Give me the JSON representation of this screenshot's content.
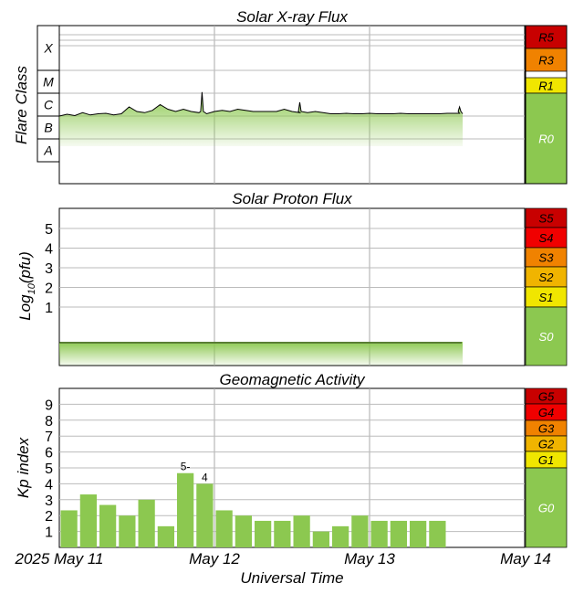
{
  "chart_data": [
    {
      "type": "area",
      "title": "Solar X-ray Flux",
      "ylabel": "Flare Class",
      "class_labels": [
        "X",
        "M",
        "C",
        "B",
        "A"
      ],
      "scale_labels": [
        "R5",
        "R3",
        "R1",
        "R0"
      ],
      "scale_colors": [
        "#c80000",
        "#f08200",
        "#f0e600",
        "#8cc850"
      ],
      "x_days": [
        0,
        0.05,
        0.1,
        0.15,
        0.2,
        0.25,
        0.3,
        0.35,
        0.4,
        0.45,
        0.5,
        0.55,
        0.6,
        0.65,
        0.7,
        0.75,
        0.8,
        0.85,
        0.9,
        0.95,
        1.0,
        1.05,
        1.1,
        1.15,
        1.2,
        1.25,
        1.3,
        1.35,
        1.4,
        1.45,
        1.5,
        1.55,
        1.6,
        1.65,
        1.7,
        1.75,
        1.8,
        1.85,
        1.9,
        1.95,
        2.0,
        2.05,
        2.1,
        2.15,
        2.2,
        2.25,
        2.3,
        2.35,
        2.4,
        2.45,
        2.5,
        2.58,
        2.6
      ],
      "flare_level": [
        2.0,
        2.08,
        2.02,
        2.15,
        2.05,
        2.1,
        2.12,
        2.05,
        2.1,
        2.4,
        2.2,
        2.15,
        2.25,
        2.5,
        2.3,
        2.2,
        2.3,
        2.2,
        2.15,
        2.1,
        2.2,
        2.25,
        2.2,
        2.3,
        2.25,
        2.2,
        2.2,
        2.2,
        2.2,
        2.3,
        2.2,
        2.15,
        2.15,
        2.2,
        2.15,
        2.1,
        2.1,
        2.12,
        2.1,
        2.1,
        2.12,
        2.1,
        2.1,
        2.1,
        2.12,
        2.1,
        2.1,
        2.1,
        2.1,
        2.1,
        2.12,
        2.12,
        2.1
      ],
      "flare_spikes": [
        {
          "x": 0.92,
          "y": 3.05
        },
        {
          "x": 1.55,
          "y": 2.6
        },
        {
          "x": 2.58,
          "y": 2.4
        }
      ],
      "xticks": [
        "2025 May 11",
        "May 12",
        "May 13",
        "May 14"
      ],
      "xlim": [
        0,
        3
      ]
    },
    {
      "type": "area",
      "title": "Solar Proton Flux",
      "ylabel": "Log10(pfu)",
      "yticks": [
        "1",
        "2",
        "3",
        "4",
        "5"
      ],
      "scale_labels": [
        "S5",
        "S4",
        "S3",
        "S2",
        "S1",
        "S0"
      ],
      "scale_colors": [
        "#c80000",
        "#f00000",
        "#f08200",
        "#f0b400",
        "#f0e600",
        "#8cc850"
      ],
      "x_days": [
        0,
        2.6
      ],
      "log_pfu": [
        -0.6,
        -0.6
      ],
      "ylim": [
        -1.3,
        6
      ],
      "xlim": [
        0,
        3
      ]
    },
    {
      "type": "bar",
      "title": "Geomagnetic Activity",
      "ylabel": "Kp index",
      "yticks": [
        "1",
        "2",
        "3",
        "4",
        "5",
        "6",
        "7",
        "8",
        "9"
      ],
      "scale_labels": [
        "G5",
        "G4",
        "G3",
        "G2",
        "G1",
        "G0"
      ],
      "scale_colors": [
        "#c80000",
        "#f00000",
        "#f08200",
        "#f0b400",
        "#f0e600",
        "#8cc850"
      ],
      "values": [
        2.33,
        3.33,
        2.67,
        2.0,
        3.0,
        1.33,
        4.67,
        4.0,
        2.33,
        2.0,
        1.67,
        1.67,
        2.0,
        1.0,
        1.33,
        2.0,
        1.67,
        1.67,
        1.67,
        1.67
      ],
      "bar_labels": [
        null,
        null,
        null,
        null,
        null,
        null,
        "5-",
        "4",
        null,
        null,
        null,
        null,
        null,
        null,
        null,
        null,
        null,
        null,
        null,
        null
      ],
      "bar_color": "#8cc850",
      "ylim": [
        0,
        10
      ],
      "xlim": [
        0,
        3
      ],
      "xticks": [
        "2025 May 11",
        "May 12",
        "May 13",
        "May 14"
      ],
      "xlabel": "Universal Time"
    }
  ]
}
